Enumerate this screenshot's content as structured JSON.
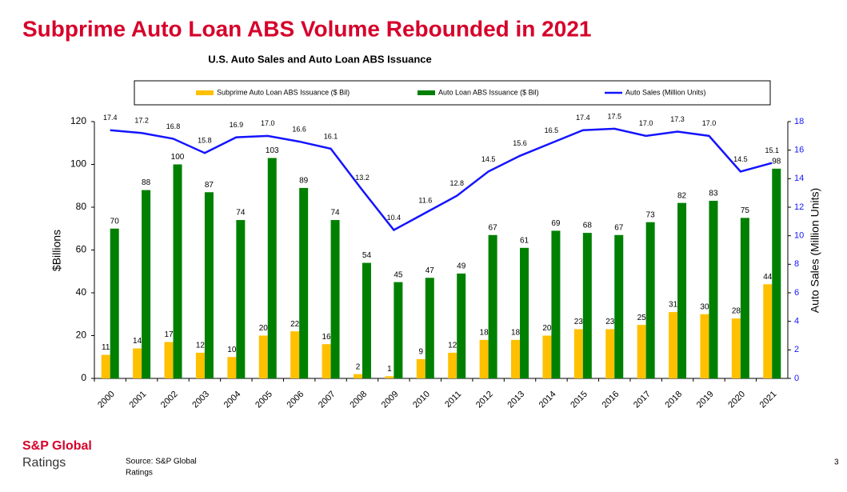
{
  "slide": {
    "headline": "Subprime Auto Loan ABS Volume Rebounded in 2021",
    "logo_top": "S&P Global",
    "logo_bottom": "Ratings",
    "source_line1": "Source: S&P Global",
    "source_line2": "Ratings",
    "page_number": "3"
  },
  "chart_data": {
    "type": "bar",
    "title": "U.S. Auto Sales and Auto Loan ABS Issuance",
    "y_label": "$Billions",
    "y2_label": "Auto Sales (Million Units)",
    "categories": [
      "2000",
      "2001",
      "2002",
      "2003",
      "2004",
      "2005",
      "2006",
      "2007",
      "2008",
      "2009",
      "2010",
      "2011",
      "2012",
      "2013",
      "2014",
      "2015",
      "2016",
      "2017",
      "2018",
      "2019",
      "2020",
      "2021"
    ],
    "series": [
      {
        "name": "Subprime Auto Loan ABS Issuance ($ Bil)",
        "color": "#ffc000",
        "type": "bar",
        "values": [
          11,
          14,
          17,
          12,
          10,
          20,
          22,
          16,
          2,
          1,
          9,
          12,
          18,
          18,
          20,
          23,
          23,
          25,
          31,
          30,
          28,
          44
        ]
      },
      {
        "name": "Auto Loan ABS Issuance ($ Bil)",
        "color": "#008000",
        "type": "bar",
        "values": [
          70,
          88,
          100,
          87,
          74,
          103,
          89,
          74,
          54,
          45,
          47,
          49,
          67,
          61,
          69,
          68,
          67,
          73,
          82,
          83,
          75,
          98
        ]
      },
      {
        "name": "Auto Sales (Million Units)",
        "color": "#1414ff",
        "type": "line",
        "axis": "y2",
        "values": [
          17.4,
          17.2,
          16.8,
          15.8,
          16.9,
          17.0,
          16.6,
          16.1,
          13.2,
          10.4,
          11.6,
          12.8,
          14.5,
          15.6,
          16.5,
          17.4,
          17.5,
          17.0,
          17.3,
          17.0,
          14.5,
          15.1
        ],
        "value_labels": [
          "17.4",
          "17.2",
          "16.8",
          "15.8",
          "16.9",
          "17.0",
          "16.6",
          "16.1",
          "13.2",
          "10.4",
          "11.6",
          "12.8",
          "14.5",
          "15.6",
          "16.5",
          "17.4",
          "17.5",
          "17.0",
          "17.3",
          "17.0",
          "14.5",
          "15.1"
        ]
      }
    ],
    "ylim": [
      0,
      120
    ],
    "yticks": [
      0,
      20,
      40,
      60,
      80,
      100,
      120
    ],
    "y2lim": [
      0,
      18
    ],
    "y2ticks": [
      0,
      2,
      4,
      6,
      8,
      10,
      12,
      14,
      16,
      18
    ],
    "legend": "top",
    "grid": false
  }
}
